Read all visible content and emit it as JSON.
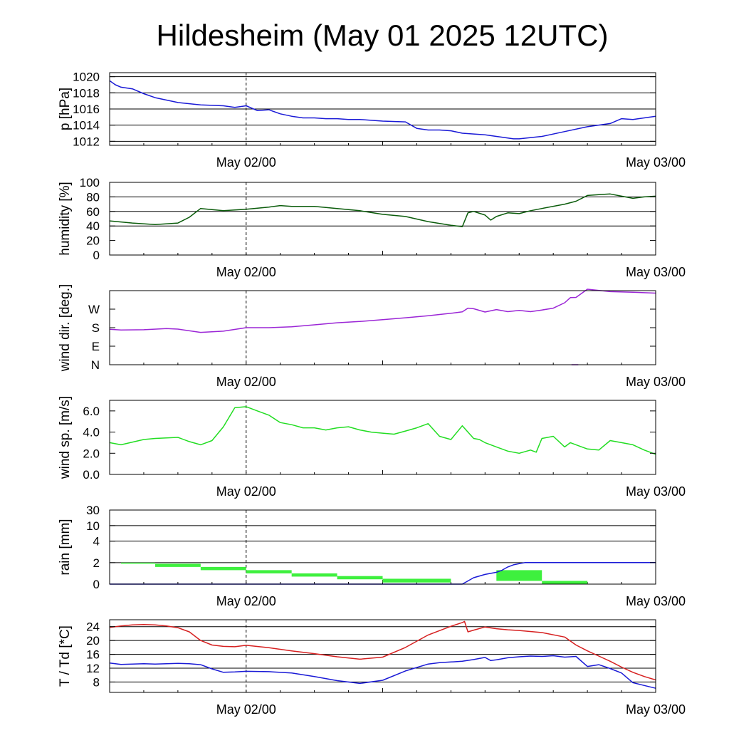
{
  "title": "Hildesheim (May 01 2025 12UTC)",
  "chart_data": [
    {
      "type": "line",
      "ylabel": "p [hPa]",
      "xlabels": [
        "May 02/00",
        "May 03/00"
      ],
      "ylim": [
        1011.5,
        1020.5
      ],
      "yticks": [
        1012,
        1014,
        1016,
        1018,
        1020
      ],
      "yticklabels": [
        "1012",
        "1014",
        "1016",
        "1018",
        "1020"
      ],
      "hgrid": [
        1012,
        1014,
        1016,
        1018,
        1020
      ],
      "series": [
        {
          "color": "#1a1ad6",
          "x": [
            0,
            0.5,
            1,
            2,
            3,
            4,
            6,
            8,
            10,
            11,
            12,
            13,
            14,
            15,
            16,
            17,
            18,
            19,
            20,
            21,
            22,
            23,
            24,
            26,
            27,
            28,
            29,
            30,
            31,
            32,
            33,
            34,
            35,
            35.5,
            36,
            38,
            40,
            42,
            44,
            45,
            46,
            47,
            48
          ],
          "y": [
            1019.5,
            1019.0,
            1018.7,
            1018.5,
            1017.9,
            1017.4,
            1016.8,
            1016.5,
            1016.4,
            1016.2,
            1016.4,
            1015.8,
            1015.9,
            1015.4,
            1015.1,
            1014.9,
            1014.9,
            1014.8,
            1014.8,
            1014.7,
            1014.7,
            1014.6,
            1014.5,
            1014.4,
            1013.6,
            1013.4,
            1013.4,
            1013.3,
            1013.0,
            1012.9,
            1012.8,
            1012.6,
            1012.4,
            1012.3,
            1012.3,
            1012.6,
            1013.2,
            1013.8,
            1014.2,
            1014.8,
            1014.7,
            1014.9,
            1015.1
          ]
        }
      ]
    },
    {
      "type": "line",
      "ylabel": "humidity [%]",
      "xlabels": [
        "May 02/00",
        "May 03/00"
      ],
      "ylim": [
        0,
        100
      ],
      "yticks": [
        0,
        20,
        40,
        60,
        80,
        100
      ],
      "yticklabels": [
        "0",
        "20",
        "40",
        "60",
        "80",
        "100"
      ],
      "hgrid": [
        40,
        60,
        80
      ],
      "series": [
        {
          "color": "#0b5c0b",
          "x": [
            0,
            2,
            4,
            6,
            7,
            8,
            10,
            12,
            14,
            15,
            16,
            18,
            20,
            22,
            24,
            26,
            28,
            30,
            31,
            31.5,
            32,
            33,
            33.5,
            34,
            35,
            36,
            37,
            38,
            40,
            41,
            42,
            43,
            44,
            45,
            46,
            47,
            48
          ],
          "y": [
            47,
            44,
            42,
            44,
            52,
            64,
            61,
            63,
            66,
            68,
            67,
            67,
            64,
            61,
            56,
            53,
            46,
            41,
            39,
            58,
            60,
            55,
            48,
            53,
            58,
            57,
            61,
            64,
            70,
            74,
            82,
            83,
            84,
            81,
            78,
            80,
            81
          ]
        }
      ]
    },
    {
      "type": "line",
      "ylabel": "wind dir. [deg.]",
      "xlabels": [
        "May 02/00",
        "May 03/00"
      ],
      "ylim": [
        0,
        360
      ],
      "yticks": [
        0,
        90,
        180,
        270
      ],
      "yticklabels": [
        "N",
        "E",
        "S",
        "W"
      ],
      "hgrid": [],
      "series": [
        {
          "color": "#9b26d6",
          "x": [
            0,
            1,
            3,
            5,
            6,
            8,
            10,
            12,
            14,
            16,
            18,
            20,
            22,
            24,
            26,
            28,
            30,
            31,
            31.5,
            32,
            33,
            34,
            35,
            36,
            37,
            38,
            39,
            40,
            40.5,
            41,
            42,
            44,
            46,
            48
          ],
          "y": [
            172,
            169,
            170,
            176,
            173,
            157,
            163,
            180,
            180,
            184,
            194,
            204,
            210,
            219,
            228,
            238,
            250,
            257,
            275,
            272,
            256,
            268,
            258,
            264,
            258,
            266,
            275,
            301,
            326,
            327,
            367,
            355,
            352,
            348
          ]
        },
        {
          "color": "#9b26d6",
          "x": [
            40.6,
            41.2
          ],
          "y": [
            0,
            0
          ]
        }
      ]
    },
    {
      "type": "line",
      "ylabel": "wind sp. [m/s]",
      "xlabels": [
        "May 02/00",
        "May 03/00"
      ],
      "ylim": [
        0,
        7
      ],
      "yticks": [
        0,
        2,
        4,
        6
      ],
      "yticklabels": [
        "0.0",
        "2.0",
        "4.0",
        "6.0"
      ],
      "hgrid": [],
      "series": [
        {
          "color": "#22dd22",
          "x": [
            0,
            1,
            3,
            4,
            6,
            7,
            8,
            9,
            10,
            11,
            12,
            13,
            14,
            15,
            16,
            17,
            18,
            19,
            20,
            21,
            22,
            23,
            24,
            25,
            26,
            27,
            28,
            29,
            30,
            31,
            32,
            32.5,
            33,
            34,
            35,
            36,
            37,
            37.5,
            38,
            39,
            40,
            40.5,
            41,
            42,
            43,
            44,
            45,
            46,
            47,
            48
          ],
          "y": [
            3.0,
            2.8,
            3.3,
            3.4,
            3.5,
            3.1,
            2.8,
            3.2,
            4.5,
            6.3,
            6.4,
            6.0,
            5.6,
            4.9,
            4.7,
            4.4,
            4.4,
            4.2,
            4.4,
            4.5,
            4.2,
            4.0,
            3.9,
            3.8,
            4.1,
            4.4,
            4.8,
            3.6,
            3.3,
            4.6,
            3.4,
            3.3,
            3.0,
            2.6,
            2.2,
            2.0,
            2.3,
            2.1,
            3.4,
            3.6,
            2.6,
            3.0,
            2.8,
            2.4,
            2.3,
            3.2,
            3.0,
            2.8,
            2.3,
            1.9
          ]
        }
      ]
    },
    {
      "type": "bar",
      "ylabel": "rain [mm]",
      "xlabels": [
        "May 02/00",
        "May 03/00"
      ],
      "yticks": [
        0,
        2,
        4,
        10,
        30
      ],
      "yticklabels": [
        "0",
        "2",
        "4",
        "10",
        "30"
      ],
      "hgrid": [
        2,
        4,
        10,
        30
      ],
      "bars": [
        {
          "x0": 1,
          "x1": 4,
          "y0": 1.9,
          "y1": 2.0
        },
        {
          "x0": 4,
          "x1": 8,
          "y0": 1.6,
          "y1": 1.9
        },
        {
          "x0": 8,
          "x1": 12,
          "y0": 1.3,
          "y1": 1.6
        },
        {
          "x0": 12,
          "x1": 16,
          "y0": 1.0,
          "y1": 1.3
        },
        {
          "x0": 16,
          "x1": 20,
          "y0": 0.7,
          "y1": 1.0
        },
        {
          "x0": 20,
          "x1": 24,
          "y0": 0.45,
          "y1": 0.75
        },
        {
          "x0": 24,
          "x1": 30,
          "y0": 0.15,
          "y1": 0.5
        },
        {
          "x0": 34,
          "x1": 38,
          "y0": 0.3,
          "y1": 1.3
        },
        {
          "x0": 38,
          "x1": 42,
          "y0": 0.0,
          "y1": 0.3
        }
      ],
      "series": [
        {
          "color": "#1a1ad6",
          "x": [
            0,
            31,
            32,
            33,
            34,
            34.5,
            35,
            35.5,
            36,
            36.5,
            37,
            48
          ],
          "y": [
            0,
            0,
            0.6,
            0.9,
            1.1,
            1.3,
            1.6,
            1.8,
            1.9,
            2.0,
            2.0,
            2.0
          ]
        }
      ]
    },
    {
      "type": "line",
      "ylabel": "T / Td [*C]",
      "xlabels": [
        "May 02/00",
        "May 03/00"
      ],
      "ylim": [
        5,
        26
      ],
      "yticks": [
        8,
        12,
        16,
        20,
        24
      ],
      "yticklabels": [
        "8",
        "12",
        "16",
        "20",
        "24"
      ],
      "hgrid": [
        8,
        12,
        16,
        20,
        24
      ],
      "series": [
        {
          "color": "#d62020",
          "x": [
            0,
            1,
            2,
            3,
            4,
            5,
            6,
            7,
            8,
            9,
            10,
            11,
            12,
            14,
            16,
            18,
            20,
            22,
            24,
            26,
            28,
            30,
            31,
            31.2,
            31.5,
            32,
            33,
            34,
            35,
            36,
            38,
            40,
            41,
            42,
            43,
            44,
            45,
            46,
            47,
            48
          ],
          "y": [
            23.8,
            24.2,
            24.5,
            24.6,
            24.5,
            24.2,
            23.7,
            22.5,
            20.0,
            18.7,
            18.3,
            18.2,
            18.6,
            17.9,
            17.0,
            16.2,
            15.3,
            14.6,
            15.2,
            18.0,
            21.6,
            24.1,
            25.2,
            25.5,
            22.5,
            23.0,
            23.9,
            23.4,
            23.1,
            22.9,
            22.3,
            21.0,
            18.7,
            17.0,
            15.5,
            14.0,
            12.3,
            10.8,
            9.6,
            8.6
          ]
        },
        {
          "color": "#1a1ad6",
          "x": [
            0,
            1,
            2,
            3,
            4,
            5,
            6,
            7,
            8,
            9,
            10,
            11,
            12,
            14,
            16,
            18,
            20,
            22,
            24,
            26,
            28,
            29,
            30,
            31,
            32,
            33,
            33.5,
            34,
            35,
            36,
            37,
            38,
            39,
            40,
            41,
            42,
            43,
            44,
            45,
            46,
            47,
            48
          ],
          "y": [
            13.5,
            13.1,
            13.2,
            13.3,
            13.2,
            13.3,
            13.4,
            13.3,
            13.0,
            11.8,
            10.8,
            10.9,
            11.1,
            11.0,
            10.6,
            9.6,
            8.4,
            7.6,
            8.5,
            11.2,
            13.2,
            13.6,
            13.8,
            14.0,
            14.5,
            15.1,
            14.2,
            14.4,
            15.0,
            15.3,
            15.5,
            15.4,
            15.6,
            15.2,
            15.4,
            12.5,
            13.0,
            11.9,
            10.6,
            7.8,
            7.0,
            6.2
          ]
        }
      ]
    }
  ]
}
